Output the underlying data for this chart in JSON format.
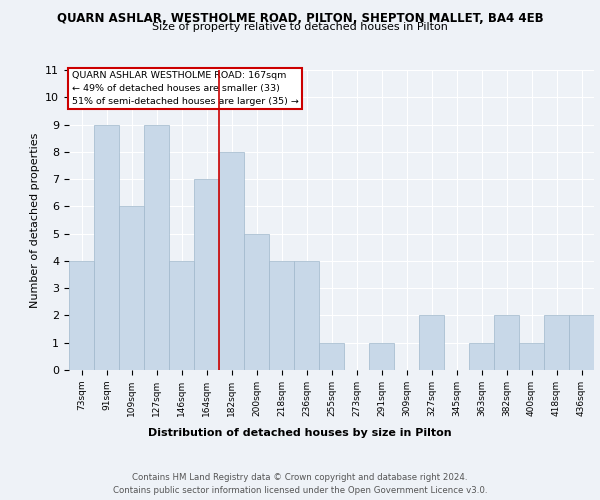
{
  "title1": "QUARN ASHLAR, WESTHOLME ROAD, PILTON, SHEPTON MALLET, BA4 4EB",
  "title2": "Size of property relative to detached houses in Pilton",
  "xlabel": "Distribution of detached houses by size in Pilton",
  "ylabel": "Number of detached properties",
  "categories": [
    "73sqm",
    "91sqm",
    "109sqm",
    "127sqm",
    "146sqm",
    "164sqm",
    "182sqm",
    "200sqm",
    "218sqm",
    "236sqm",
    "255sqm",
    "273sqm",
    "291sqm",
    "309sqm",
    "327sqm",
    "345sqm",
    "363sqm",
    "382sqm",
    "400sqm",
    "418sqm",
    "436sqm"
  ],
  "values": [
    4,
    9,
    6,
    9,
    4,
    7,
    8,
    5,
    4,
    4,
    1,
    0,
    1,
    0,
    2,
    0,
    1,
    2,
    1,
    2,
    2
  ],
  "bar_color": "#c8d8e8",
  "bar_edge_color": "#a0b8cc",
  "vline_x": 5.5,
  "vline_color": "#cc0000",
  "annotation_box_text": "QUARN ASHLAR WESTHOLME ROAD: 167sqm\n← 49% of detached houses are smaller (33)\n51% of semi-detached houses are larger (35) →",
  "ylim": [
    0,
    11
  ],
  "yticks": [
    0,
    1,
    2,
    3,
    4,
    5,
    6,
    7,
    8,
    9,
    10,
    11
  ],
  "bg_color": "#eef2f7",
  "plot_bg_color": "#eef2f7",
  "grid_color": "#ffffff",
  "footer": "Contains HM Land Registry data © Crown copyright and database right 2024.\nContains public sector information licensed under the Open Government Licence v3.0."
}
